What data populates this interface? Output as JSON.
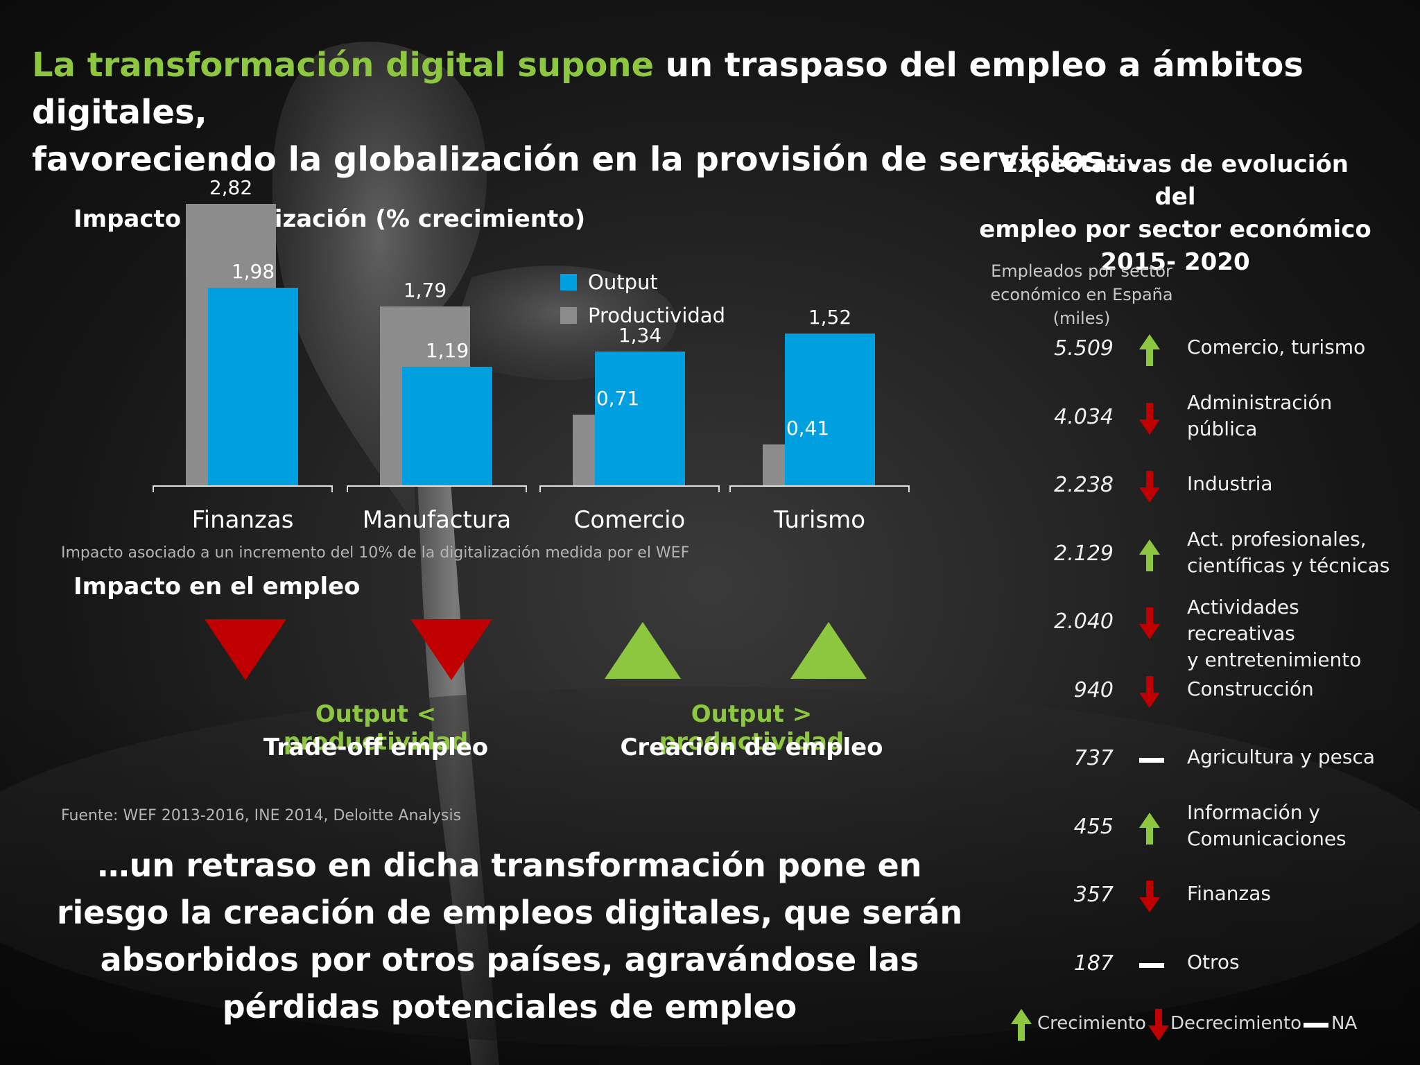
{
  "headline": {
    "highlight": "La transformación digital supone",
    "rest_line1": " un traspaso del empleo a ámbitos digitales,",
    "line2": "favoreciendo la globalización en la provisión de servicios…"
  },
  "chart_data": {
    "type": "bar",
    "title": "Impacto digitalización (% crecimiento)",
    "categories": [
      "Finanzas",
      "Manufactura",
      "Comercio",
      "Turismo"
    ],
    "series": [
      {
        "name": "Output",
        "values": [
          1.98,
          1.19,
          1.34,
          1.52
        ],
        "labels": [
          "1,98",
          "1,19",
          "1,34",
          "1,52"
        ],
        "color": "#00a0e0"
      },
      {
        "name": "Productividad",
        "values": [
          2.82,
          1.79,
          0.71,
          0.41
        ],
        "labels": [
          "2,82",
          "1,79",
          "0,71",
          "0,41"
        ],
        "color": "#8c8c8c"
      }
    ],
    "ylim": [
      0,
      3.2
    ],
    "grid": false,
    "legend": "top-right",
    "xlabel": "",
    "ylabel": ""
  },
  "chart_note": "Impacto asociado a un incremento del 10% de la digitalización medida por el WEF",
  "impacto": {
    "title": "Impacto en el empleo",
    "left_green": "Output < productividad",
    "left_white": "Trade-off empleo",
    "right_green": "Output > productividad",
    "right_white": "Creación de empleo"
  },
  "source": "Fuente: WEF 2013-2016, INE 2014, Deloitte Analysis",
  "bottom_text": "…un retraso en dicha transformación pone en riesgo la creación de empleos digitales, que serán absorbidos por otros países, agravándose las pérdidas potenciales de empleo",
  "right_panel": {
    "title_lines": [
      "Expectativas de evolución del",
      "empleo por sector económico",
      "2015- 2020"
    ],
    "subtitle_lines": [
      "Empleados  por sector",
      "económico en España",
      "(miles)"
    ],
    "rows": [
      {
        "value": "5.509",
        "trend": "up",
        "label_lines": [
          "Comercio, turismo"
        ]
      },
      {
        "value": "4.034",
        "trend": "down",
        "label_lines": [
          "Administración",
          "pública"
        ]
      },
      {
        "value": "2.238",
        "trend": "down",
        "label_lines": [
          "Industria"
        ]
      },
      {
        "value": "2.129",
        "trend": "up",
        "label_lines": [
          "Act. profesionales,",
          "científicas y técnicas"
        ]
      },
      {
        "value": "2.040",
        "trend": "down",
        "label_lines": [
          "Actividades recreativas",
          "y entretenimiento"
        ]
      },
      {
        "value": "940",
        "trend": "down",
        "label_lines": [
          "Construcción"
        ]
      },
      {
        "value": "737",
        "trend": "na",
        "label_lines": [
          "Agricultura y pesca"
        ]
      },
      {
        "value": "455",
        "trend": "up",
        "label_lines": [
          "Información y",
          "Comunicaciones"
        ]
      },
      {
        "value": "357",
        "trend": "down",
        "label_lines": [
          "Finanzas"
        ]
      },
      {
        "value": "187",
        "trend": "na",
        "label_lines": [
          "Otros"
        ]
      }
    ],
    "legend": {
      "up": "Crecimiento",
      "down": "Decrecimiento",
      "na": "NA"
    }
  },
  "colors": {
    "green": "#8dc63f",
    "red": "#c00000",
    "blue": "#00a0e0",
    "gray": "#8c8c8c"
  }
}
